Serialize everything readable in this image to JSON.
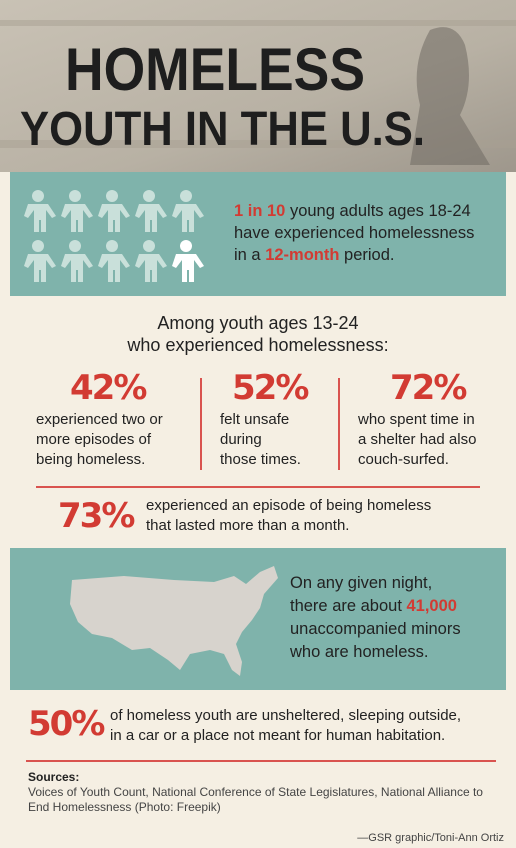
{
  "header": {
    "title": "HOMELESS",
    "subtitle": "YOUTH IN THE U.S."
  },
  "fact_1": {
    "lines": [
      [
        "1 in 10",
        " young adults ages 18-24"
      ],
      [
        "have experienced homelessness"
      ],
      [
        "in a ",
        "12-month",
        " period."
      ]
    ]
  },
  "among": {
    "lines": [
      "Among youth ages 13-24",
      "who experienced homelessness:"
    ],
    "stats": [
      {
        "value": "42%",
        "lines": [
          "experienced two or",
          "more episodes of",
          "being homeless."
        ]
      },
      {
        "value": "52%",
        "lines": [
          "felt unsafe",
          "during",
          "those times."
        ]
      },
      {
        "value": "72%",
        "lines": [
          "who spent time in",
          "a shelter had also",
          "couch-surfed."
        ]
      }
    ],
    "wide_stat": {
      "value": "73%",
      "lines": [
        "experienced an episode of being homeless",
        "that lasted more than a month."
      ]
    }
  },
  "fact_2": {
    "lines": [
      [
        "On any given night,"
      ],
      [
        "there are about ",
        "41,000"
      ],
      [
        "unaccompanied minors"
      ],
      [
        "who are homeless."
      ]
    ]
  },
  "fact_3": {
    "value": "50%",
    "lines": [
      "of homeless youth are unsheltered, sleeping outside,",
      "in a car or a place not meant for human habitation."
    ]
  },
  "sources": {
    "heading": "Sources:",
    "lines": [
      "Voices of Youth Count, National Conference of State Legislatures, National Alliance to",
      "End Homelessness (Photo: Freepik)"
    ]
  },
  "credit": "—GSR graphic/Toni-Ann Ortiz"
}
